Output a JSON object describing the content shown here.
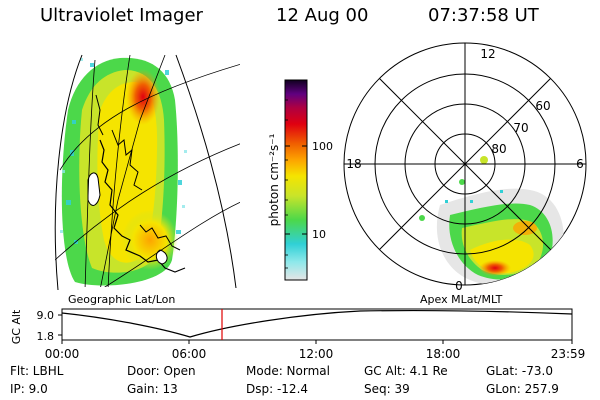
{
  "header": {
    "instrument": "Ultraviolet Imager",
    "date": "12 Aug 00",
    "time": "07:37:58 UT"
  },
  "left_panel": {
    "caption": "Geographic Lat/Lon"
  },
  "colorbar": {
    "unit_label": "photon cm⁻²s⁻¹",
    "tick_100": "100",
    "tick_10": "10",
    "colors": [
      "#e6e6e6",
      "#8ee8ea",
      "#30d0d6",
      "#4cd84a",
      "#c8e42a",
      "#f5e400",
      "#fda400",
      "#f06000",
      "#e00010",
      "#b00040",
      "#600080",
      "#100020"
    ]
  },
  "polar_panel": {
    "caption": "Apex MLat/MLT",
    "mlt_labels": {
      "top": "12",
      "left": "18",
      "right": "6",
      "bottom": "0"
    },
    "lat_labels": [
      "60",
      "70",
      "80"
    ]
  },
  "altitude_plot": {
    "axis_label": "GC Alt",
    "y_ticks": [
      "9.0",
      "1.8"
    ],
    "x_ticks": [
      "00:00",
      "06:00",
      "12:00",
      "18:00",
      "23:59"
    ],
    "current_time_marker_color": "#e00000"
  },
  "status": {
    "filter": "Flt: LBHL",
    "ip": "IP:  9.0",
    "door": "Door: Open",
    "gain": "Gain: 13",
    "mode": "Mode: Normal",
    "dsp": "Dsp:  -12.4",
    "gc_alt": "GC Alt: 4.1 Re",
    "seq": "Seq: 39",
    "glat": "GLat: -73.0",
    "glon": "GLon: 257.9"
  }
}
